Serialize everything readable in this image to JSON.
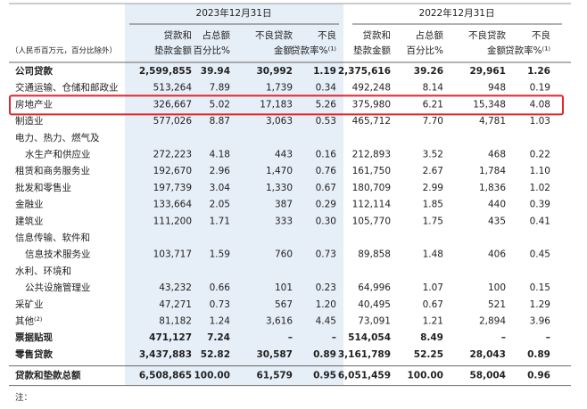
{
  "header": {
    "unit_note": "（人民币百万元，百分比除外）",
    "periods": [
      "2023年12月31日",
      "2022年12月31日"
    ],
    "columns": [
      [
        "贷款和",
        "垫款金额"
      ],
      [
        "占总额",
        "百分比%"
      ],
      [
        "不良贷款",
        "金额"
      ],
      [
        "不良",
        "贷款率%⁽¹⁾"
      ],
      [
        "贷款和",
        "垫款金额"
      ],
      [
        "占总额",
        "百分比%"
      ],
      [
        "不良贷款",
        "金额"
      ],
      [
        "不良",
        "贷款率%⁽¹⁾"
      ]
    ]
  },
  "table": {
    "rows": [
      {
        "label": [
          "公司贷款"
        ],
        "cells": [
          "2,599,855",
          "39.94",
          "30,992",
          "1.19",
          "2,375,616",
          "39.26",
          "29,961",
          "1.26"
        ],
        "bold": true
      },
      {
        "label": [
          "交通运输、仓储和邮政业"
        ],
        "cells": [
          "513,264",
          "7.89",
          "1,739",
          "0.34",
          "492,248",
          "8.14",
          "948",
          "0.19"
        ]
      },
      {
        "label": [
          "房地产业"
        ],
        "cells": [
          "326,667",
          "5.02",
          "17,183",
          "5.26",
          "375,980",
          "6.21",
          "15,348",
          "4.08"
        ],
        "highlight": true
      },
      {
        "label": [
          "制造业"
        ],
        "cells": [
          "577,026",
          "8.87",
          "3,063",
          "0.53",
          "465,712",
          "7.70",
          "4,781",
          "1.03"
        ]
      },
      {
        "label": [
          "电力、热力、燃气及",
          "水生产和供应业"
        ],
        "cells": [
          "272,223",
          "4.18",
          "443",
          "0.16",
          "212,893",
          "3.52",
          "468",
          "0.22"
        ]
      },
      {
        "label": [
          "租赁和商务服务业"
        ],
        "cells": [
          "192,670",
          "2.96",
          "1,470",
          "0.76",
          "161,750",
          "2.67",
          "1,784",
          "1.10"
        ]
      },
      {
        "label": [
          "批发和零售业"
        ],
        "cells": [
          "197,739",
          "3.04",
          "1,330",
          "0.67",
          "180,709",
          "2.99",
          "1,836",
          "1.02"
        ]
      },
      {
        "label": [
          "金融业"
        ],
        "cells": [
          "133,664",
          "2.05",
          "387",
          "0.29",
          "112,114",
          "1.85",
          "440",
          "0.39"
        ]
      },
      {
        "label": [
          "建筑业"
        ],
        "cells": [
          "111,200",
          "1.71",
          "333",
          "0.30",
          "105,770",
          "1.75",
          "435",
          "0.41"
        ]
      },
      {
        "label": [
          "信息传输、软件和",
          "信息技术服务业"
        ],
        "cells": [
          "103,717",
          "1.59",
          "760",
          "0.73",
          "89,858",
          "1.48",
          "406",
          "0.45"
        ]
      },
      {
        "label": [
          "水利、环境和",
          "公共设施管理业"
        ],
        "cells": [
          "43,232",
          "0.66",
          "101",
          "0.23",
          "64,996",
          "1.07",
          "100",
          "0.15"
        ]
      },
      {
        "label": [
          "采矿业"
        ],
        "cells": [
          "47,271",
          "0.73",
          "567",
          "1.20",
          "40,495",
          "0.67",
          "521",
          "1.29"
        ]
      },
      {
        "label": [
          "其他⁽²⁾"
        ],
        "cells": [
          "81,182",
          "1.24",
          "3,616",
          "4.45",
          "73,091",
          "1.21",
          "2,894",
          "3.96"
        ]
      },
      {
        "label": [
          "票据贴现"
        ],
        "cells": [
          "471,127",
          "7.24",
          "–",
          "–",
          "514,054",
          "8.49",
          "–",
          "–"
        ],
        "bold": true
      },
      {
        "label": [
          "零售贷款"
        ],
        "cells": [
          "3,437,883",
          "52.82",
          "30,587",
          "0.89",
          "3,161,789",
          "52.25",
          "28,043",
          "0.89"
        ],
        "bold": true
      },
      {
        "label": [
          "贷款和垫款总额"
        ],
        "cells": [
          "6,508,865",
          "100.00",
          "61,579",
          "0.95",
          "6,051,459",
          "100.00",
          "58,004",
          "0.96"
        ],
        "bold": true,
        "total": true
      }
    ]
  },
  "footnote": "注："
}
